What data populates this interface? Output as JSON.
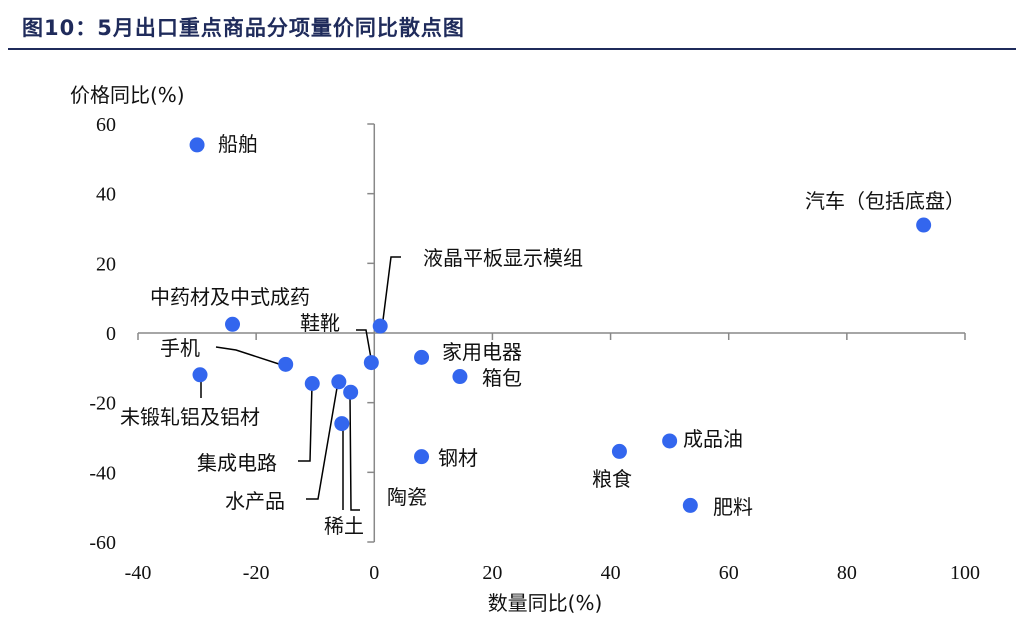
{
  "figure": {
    "title": "图10：5月出口重点商品分项量价同比散点图"
  },
  "chart_data": {
    "type": "scatter",
    "title": "图10：5月出口重点商品分项量价同比散点图",
    "xlabel": "数量同比(%)",
    "ylabel": "价格同比(%)",
    "xlim": [
      -40,
      100
    ],
    "ylim": [
      -60,
      60
    ],
    "xticks": [
      -40,
      -20,
      0,
      20,
      40,
      60,
      80,
      100
    ],
    "yticks": [
      60,
      40,
      20,
      0,
      -20,
      -40,
      -60
    ],
    "x_tick_labels": [
      "-40",
      "-20",
      "0",
      "20",
      "40",
      "60",
      "80",
      "100"
    ],
    "y_tick_labels": [
      "60",
      "40",
      "20",
      "0",
      "-20",
      "-40",
      "-60"
    ],
    "point_color": "#3366ee",
    "points": [
      {
        "label": "船舶",
        "x": -30,
        "y": 54
      },
      {
        "label": "汽车（包括底盘）",
        "x": 93,
        "y": 31
      },
      {
        "label": "液晶平板显示模组",
        "x": 1,
        "y": 2
      },
      {
        "label": "中药材及中式成药",
        "x": -24,
        "y": 2.5
      },
      {
        "label": "鞋靴",
        "x": -0.5,
        "y": -8.5
      },
      {
        "label": "家用电器",
        "x": 8,
        "y": -7
      },
      {
        "label": "箱包",
        "x": 14.5,
        "y": -12.5
      },
      {
        "label": "手机",
        "x": -15,
        "y": -9
      },
      {
        "label": "未锻轧铝及铝材",
        "x": -29.5,
        "y": -12
      },
      {
        "label": "集成电路",
        "x": -10.5,
        "y": -14.5
      },
      {
        "label": "水产品",
        "x": -6,
        "y": -14
      },
      {
        "label": "陶瓷",
        "x": -4,
        "y": -17
      },
      {
        "label": "稀土",
        "x": -5.5,
        "y": -26
      },
      {
        "label": "钢材",
        "x": 8,
        "y": -35.5
      },
      {
        "label": "成品油",
        "x": 50,
        "y": -31
      },
      {
        "label": "粮食",
        "x": 41.5,
        "y": -34
      },
      {
        "label": "肥料",
        "x": 53.5,
        "y": -49.5
      }
    ]
  }
}
